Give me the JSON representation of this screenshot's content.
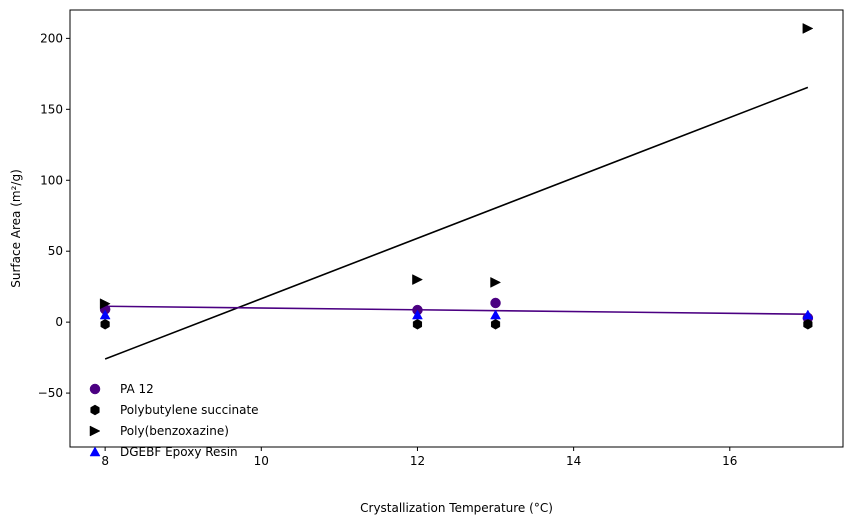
{
  "chart_data": {
    "type": "scatter",
    "title": "",
    "xlabel": "Crystallization Temperature (°C)",
    "ylabel": "Surface Area (m²/g)",
    "xlim": [
      7.55,
      17.45
    ],
    "ylim": [
      -88,
      220
    ],
    "xticks": [
      8,
      10,
      12,
      14,
      16
    ],
    "yticks": [
      -50,
      0,
      50,
      100,
      150,
      200
    ],
    "grid": false,
    "legend_position": "lower-left",
    "series": [
      {
        "name": "PA 12",
        "marker": "circle",
        "color": "#4b0082",
        "points": [
          [
            8,
            9
          ],
          [
            12,
            8.5
          ],
          [
            13,
            13.5
          ],
          [
            17,
            3
          ]
        ]
      },
      {
        "name": "Polybutylene succinate",
        "marker": "hexagon",
        "color": "#000000",
        "points": [
          [
            8,
            -1.5
          ],
          [
            12,
            -1.5
          ],
          [
            13,
            -1.5
          ],
          [
            17,
            -1.5
          ]
        ]
      },
      {
        "name": "Poly(benzoxazine)",
        "marker": "triangle-right",
        "color": "#000000",
        "points": [
          [
            8,
            13
          ],
          [
            12,
            30
          ],
          [
            13,
            28
          ],
          [
            17,
            207
          ]
        ]
      },
      {
        "name": "DGEBF Epoxy Resin",
        "marker": "triangle-up",
        "color": "#0000ff",
        "points": [
          [
            8,
            5
          ],
          [
            12,
            5
          ],
          [
            13,
            5
          ],
          [
            17,
            5
          ]
        ]
      }
    ],
    "trend_lines": [
      {
        "color": "#000000",
        "from": [
          8,
          -26
        ],
        "to": [
          17,
          165.5
        ]
      },
      {
        "color": "#4b0082",
        "from": [
          8,
          11.2
        ],
        "to": [
          17,
          5.6
        ]
      }
    ]
  }
}
